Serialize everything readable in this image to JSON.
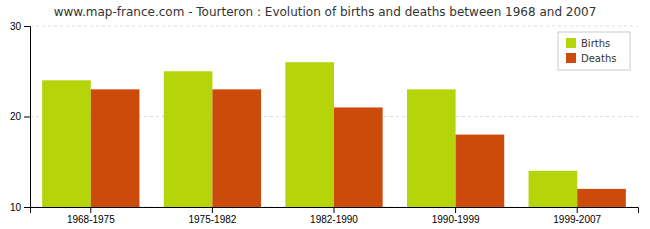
{
  "chart_data": {
    "type": "bar",
    "title": "www.map-france.com - Tourteron : Evolution of births and deaths between 1968 and 2007",
    "categories": [
      "1968-1975",
      "1975-1982",
      "1982-1990",
      "1990-1999",
      "1999-2007"
    ],
    "series": [
      {
        "name": "Births",
        "color": "#b5d40a",
        "values": [
          24,
          25,
          26,
          23,
          14
        ]
      },
      {
        "name": "Deaths",
        "color": "#cc4a0a",
        "values": [
          23,
          23,
          21,
          18,
          12
        ]
      }
    ],
    "ylim": [
      10,
      30
    ],
    "yticks": [
      10,
      20,
      30
    ],
    "grid": true,
    "legend": "upper right"
  }
}
